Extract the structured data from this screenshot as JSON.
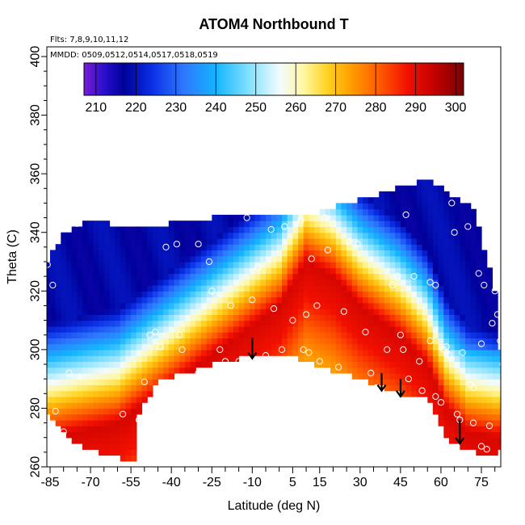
{
  "chart_data": {
    "type": "heatmap",
    "title": "ATOM4 Northbound T",
    "annotations": {
      "flights": "Flts: 7,8,9,10,11,12",
      "dates": "MMDD: 0509,0512,0514,0517,0518,0519"
    },
    "xlabel": "Latitude (deg N)",
    "ylabel": "Theta (C)",
    "xlim": [
      -87,
      82
    ],
    "ylim": [
      260,
      405
    ],
    "xticks": [
      -85,
      -70,
      -55,
      -40,
      -25,
      -10,
      5,
      15,
      30,
      45,
      60,
      75
    ],
    "xticks_minor": [
      -80,
      -75,
      -65,
      -60,
      -50,
      -45,
      -35,
      -30,
      -20,
      -15,
      -5,
      0,
      10,
      20,
      25,
      35,
      40,
      50,
      55,
      65,
      70,
      80
    ],
    "yticks": [
      260,
      280,
      300,
      320,
      340,
      360,
      380,
      400
    ],
    "colorbar": {
      "ticks": [
        210,
        220,
        230,
        240,
        250,
        260,
        270,
        280,
        290,
        300
      ],
      "range": [
        207,
        302
      ],
      "stops": [
        {
          "value": 207,
          "color": "#7a1bd6"
        },
        {
          "value": 212,
          "color": "#2a0fcc"
        },
        {
          "value": 217,
          "color": "#00009a"
        },
        {
          "value": 224,
          "color": "#0a2fe6"
        },
        {
          "value": 232,
          "color": "#2e78ff"
        },
        {
          "value": 240,
          "color": "#14b4ff"
        },
        {
          "value": 248,
          "color": "#7fe0ff"
        },
        {
          "value": 256,
          "color": "#f2fbff"
        },
        {
          "value": 262,
          "color": "#fff7a0"
        },
        {
          "value": 268,
          "color": "#ffd21e"
        },
        {
          "value": 274,
          "color": "#ff9c00"
        },
        {
          "value": 281,
          "color": "#ff5a00"
        },
        {
          "value": 288,
          "color": "#f21000"
        },
        {
          "value": 295,
          "color": "#c00000"
        },
        {
          "value": 302,
          "color": "#780000"
        }
      ]
    },
    "field_model": {
      "core_temperature": 292,
      "cold_temperature": 218,
      "warm_core": [
        [
          -85,
          270
        ],
        [
          -60,
          275
        ],
        [
          -45,
          285
        ],
        [
          -30,
          295
        ],
        [
          -15,
          305
        ],
        [
          0,
          315
        ],
        [
          10,
          330
        ],
        [
          20,
          325
        ],
        [
          30,
          315
        ],
        [
          45,
          305
        ],
        [
          55,
          295
        ],
        [
          62,
          280
        ],
        [
          70,
          272
        ],
        [
          80,
          270
        ]
      ],
      "upper_limit": [
        [
          -87,
          329
        ],
        [
          -80,
          340
        ],
        [
          -70,
          344
        ],
        [
          -55,
          342
        ],
        [
          -40,
          343
        ],
        [
          -25,
          345
        ],
        [
          -10,
          346
        ],
        [
          5,
          346
        ],
        [
          15,
          347
        ],
        [
          25,
          350
        ],
        [
          40,
          354
        ],
        [
          55,
          358
        ],
        [
          65,
          352
        ],
        [
          72,
          348
        ],
        [
          80,
          320
        ],
        [
          82,
          300
        ]
      ],
      "lower_limit": [
        [
          -85,
          278
        ],
        [
          -75,
          268
        ],
        [
          -65,
          264
        ],
        [
          -53,
          262
        ],
        [
          -53,
          276
        ],
        [
          -45,
          290
        ],
        [
          -35,
          292
        ],
        [
          -25,
          295
        ],
        [
          -15,
          297
        ],
        [
          -5,
          299
        ],
        [
          5,
          298
        ],
        [
          15,
          294
        ],
        [
          25,
          292
        ],
        [
          35,
          288
        ],
        [
          45,
          285
        ],
        [
          55,
          285
        ],
        [
          62,
          270
        ],
        [
          70,
          266
        ],
        [
          78,
          264
        ],
        [
          82,
          266
        ]
      ]
    },
    "observation_points": [
      [
        -86,
        329
      ],
      [
        -84,
        322
      ],
      [
        -83,
        279
      ],
      [
        -80,
        272
      ],
      [
        -78,
        292
      ],
      [
        -75,
        343
      ],
      [
        -58,
        278
      ],
      [
        -52,
        276
      ],
      [
        -50,
        289
      ],
      [
        -48,
        305
      ],
      [
        -46,
        306
      ],
      [
        -44,
        301
      ],
      [
        -42,
        335
      ],
      [
        -38,
        336
      ],
      [
        -37,
        305
      ],
      [
        -36,
        300
      ],
      [
        -34,
        289
      ],
      [
        -30,
        292
      ],
      [
        -30,
        336
      ],
      [
        -26,
        330
      ],
      [
        -25,
        320
      ],
      [
        -22,
        300
      ],
      [
        -20,
        296
      ],
      [
        -18,
        315
      ],
      [
        -15,
        296
      ],
      [
        -12,
        345
      ],
      [
        -10,
        317
      ],
      [
        -8,
        328
      ],
      [
        -5,
        298
      ],
      [
        -3,
        341
      ],
      [
        -2,
        314
      ],
      [
        1,
        300
      ],
      [
        2,
        342
      ],
      [
        5,
        310
      ],
      [
        8,
        344
      ],
      [
        9,
        300
      ],
      [
        10,
        312
      ],
      [
        11,
        299
      ],
      [
        12,
        331
      ],
      [
        14,
        315
      ],
      [
        15,
        296
      ],
      [
        17,
        345
      ],
      [
        18,
        334
      ],
      [
        20,
        343
      ],
      [
        22,
        294
      ],
      [
        24,
        313
      ],
      [
        26,
        337
      ],
      [
        29,
        336
      ],
      [
        32,
        306
      ],
      [
        34,
        292
      ],
      [
        36,
        287
      ],
      [
        40,
        300
      ],
      [
        42,
        322
      ],
      [
        44,
        325
      ],
      [
        45,
        305
      ],
      [
        46,
        300
      ],
      [
        47,
        346
      ],
      [
        48,
        290
      ],
      [
        50,
        325
      ],
      [
        52,
        296
      ],
      [
        53,
        286
      ],
      [
        56,
        323
      ],
      [
        58,
        322
      ],
      [
        60,
        282
      ],
      [
        61,
        300
      ],
      [
        62,
        301
      ],
      [
        63,
        298
      ],
      [
        64,
        350
      ],
      [
        65,
        340
      ],
      [
        66,
        278
      ],
      [
        67,
        276
      ],
      [
        68,
        299
      ],
      [
        70,
        342
      ],
      [
        71,
        288
      ],
      [
        72,
        287
      ],
      [
        74,
        326
      ],
      [
        75,
        302
      ],
      [
        76,
        322
      ],
      [
        77,
        266
      ],
      [
        78,
        274
      ],
      [
        79,
        309
      ],
      [
        80,
        320
      ],
      [
        81,
        312
      ],
      [
        82,
        303
      ],
      [
        83,
        295
      ],
      [
        84,
        320
      ],
      [
        75,
        267
      ],
      [
        72,
        275
      ],
      [
        56,
        303
      ],
      [
        58,
        284
      ]
    ],
    "arrows": [
      {
        "lat": -10,
        "theta_from": 304,
        "theta_to": 297
      },
      {
        "lat": 38,
        "theta_from": 292,
        "theta_to": 286
      },
      {
        "lat": 45,
        "theta_from": 290,
        "theta_to": 284
      },
      {
        "lat": 67,
        "theta_from": 276,
        "theta_to": 268
      }
    ]
  }
}
